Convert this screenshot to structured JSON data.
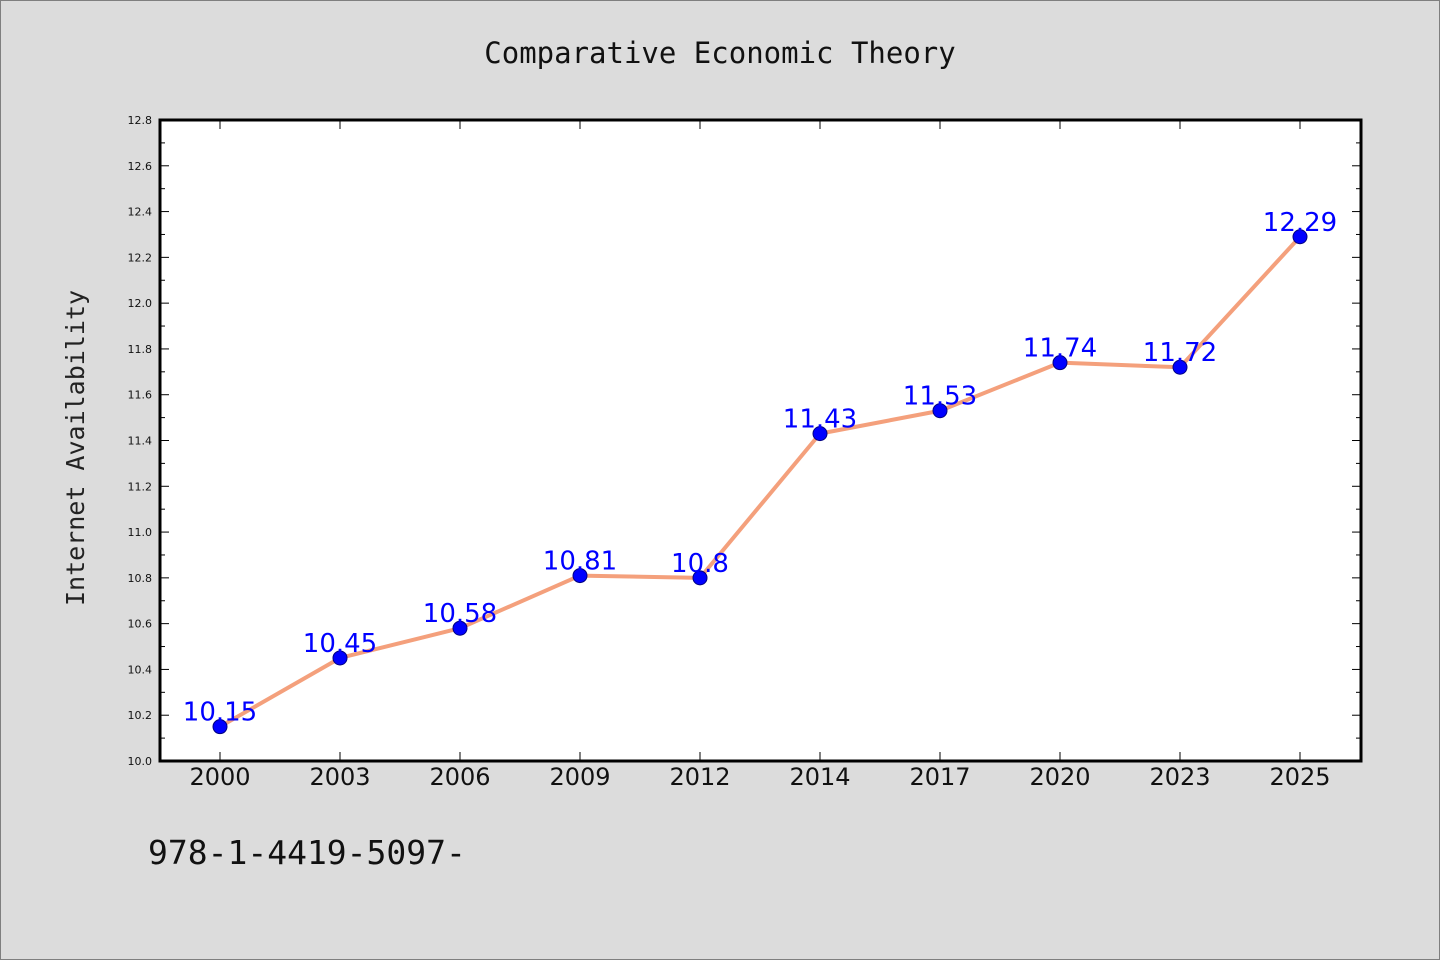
{
  "chart_data": {
    "type": "line",
    "title": "Comparative Economic Theory",
    "xlabel": "",
    "ylabel": "Internet Availability",
    "categories": [
      "2000",
      "2003",
      "2006",
      "2009",
      "2012",
      "2014",
      "2017",
      "2020",
      "2023",
      "2025"
    ],
    "series": [
      {
        "values": [
          10.15,
          10.45,
          10.58,
          10.81,
          10.8,
          11.43,
          11.53,
          11.74,
          11.72,
          12.29
        ],
        "data_labels": [
          "10.15",
          "10.45",
          "10.58",
          "10.81",
          "10.8",
          "11.43",
          "11.53",
          "11.74",
          "11.72",
          "12.29"
        ],
        "line_color": "#f4a07c",
        "marker_color": "#0000ff"
      }
    ],
    "ylim": [
      10.0,
      12.8
    ],
    "yticks": [
      "10.0",
      "10.2",
      "10.4",
      "10.6",
      "10.8",
      "11.0",
      "11.2",
      "11.4",
      "11.6",
      "11.8",
      "12.0",
      "12.2",
      "12.4",
      "12.6",
      "12.8"
    ],
    "grid": false,
    "legend": "none"
  },
  "footer_text": "978-1-4419-5097-",
  "colors": {
    "background": "#dcdcdc",
    "plot_background": "#ffffff",
    "line": "#f4a07c",
    "marker": "#0000ff",
    "data_label": "#0000ff"
  }
}
